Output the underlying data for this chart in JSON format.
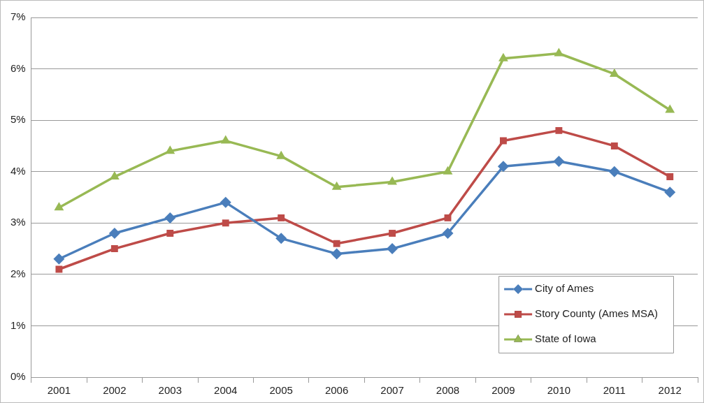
{
  "chart_data": {
    "type": "line",
    "categories": [
      "2001",
      "2002",
      "2003",
      "2004",
      "2005",
      "2006",
      "2007",
      "2008",
      "2009",
      "2010",
      "2011",
      "2012"
    ],
    "series": [
      {
        "name": "City of Ames",
        "color": "#4a7ebb",
        "marker": "diamond",
        "values": [
          2.3,
          2.8,
          3.1,
          3.4,
          2.7,
          2.4,
          2.5,
          2.8,
          4.1,
          4.2,
          4.0,
          3.6
        ]
      },
      {
        "name": "Story County (Ames MSA)",
        "color": "#be4b48",
        "marker": "square",
        "values": [
          2.1,
          2.5,
          2.8,
          3.0,
          3.1,
          2.6,
          2.8,
          3.1,
          4.6,
          4.8,
          4.5,
          3.9
        ]
      },
      {
        "name": "State of Iowa",
        "color": "#98b954",
        "marker": "triangle",
        "values": [
          3.3,
          3.9,
          4.4,
          4.6,
          4.3,
          3.7,
          3.8,
          4.0,
          6.2,
          6.3,
          5.9,
          5.2
        ]
      }
    ],
    "ylim": [
      0,
      7
    ],
    "yticks": [
      {
        "value": 0,
        "label": "0%"
      },
      {
        "value": 1,
        "label": "1%"
      },
      {
        "value": 2,
        "label": "2%"
      },
      {
        "value": 3,
        "label": "3%"
      },
      {
        "value": 4,
        "label": "4%"
      },
      {
        "value": 5,
        "label": "5%"
      },
      {
        "value": 6,
        "label": "6%"
      },
      {
        "value": 7,
        "label": "7%"
      }
    ],
    "grid": "y",
    "legend": "bottom right",
    "line_style": "solid"
  }
}
